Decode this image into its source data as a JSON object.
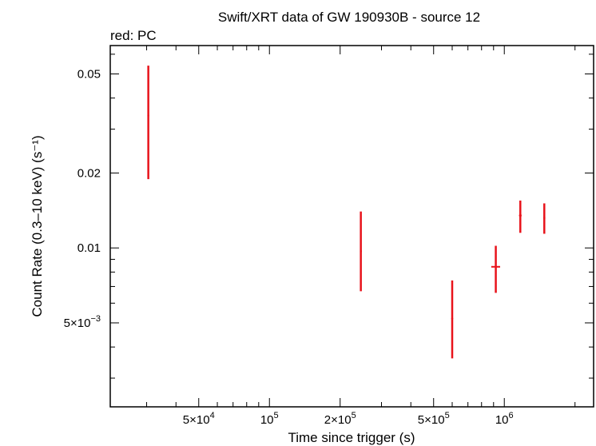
{
  "chart_data": {
    "type": "scatter",
    "title": "Swift/XRT data of GW 190930B - source 12",
    "subtitle": "red: PC",
    "xlabel": "Time since trigger (s)",
    "ylabel": "Count Rate (0.3–10 keV) (s⁻¹)",
    "x_scale": "log",
    "y_scale": "log",
    "xlim": [
      21000,
      2400000
    ],
    "ylim": [
      0.0023,
      0.065
    ],
    "series_color": "#e8131b",
    "x_tick_labels": [
      {
        "value": 50000,
        "mantissa": "5×10",
        "exp": "4"
      },
      {
        "value": 100000,
        "mantissa": "10",
        "exp": "5"
      },
      {
        "value": 200000,
        "mantissa": "2×10",
        "exp": "5"
      },
      {
        "value": 500000,
        "mantissa": "5×10",
        "exp": "5"
      },
      {
        "value": 1000000,
        "mantissa": "10",
        "exp": "6"
      }
    ],
    "y_tick_labels": [
      {
        "value": 0.05,
        "mantissa": "0.05",
        "exp": ""
      },
      {
        "value": 0.02,
        "mantissa": "0.02",
        "exp": ""
      },
      {
        "value": 0.01,
        "mantissa": "0.01",
        "exp": ""
      },
      {
        "value": 0.005,
        "mantissa": "5×10",
        "exp": "−3"
      }
    ],
    "points": [
      {
        "x": 30500,
        "y": 0.034,
        "y_lo": 0.0189,
        "y_hi": 0.054,
        "x_lo": 30300,
        "x_hi": 30700
      },
      {
        "x": 245000,
        "y": 0.0097,
        "y_lo": 0.0067,
        "y_hi": 0.014,
        "x_lo": 243000,
        "x_hi": 247000
      },
      {
        "x": 600000,
        "y": 0.0052,
        "y_lo": 0.0036,
        "y_hi": 0.0074,
        "x_lo": 595000,
        "x_hi": 605000
      },
      {
        "x": 920000,
        "y": 0.0084,
        "y_lo": 0.0066,
        "y_hi": 0.0102,
        "x_lo": 880000,
        "x_hi": 960000
      },
      {
        "x": 1170000,
        "y": 0.0135,
        "y_lo": 0.0115,
        "y_hi": 0.0155,
        "x_lo": 1155000,
        "x_hi": 1185000
      },
      {
        "x": 1480000,
        "y": 0.0132,
        "y_lo": 0.0114,
        "y_hi": 0.0151,
        "x_lo": 1465000,
        "x_hi": 1495000
      }
    ]
  }
}
